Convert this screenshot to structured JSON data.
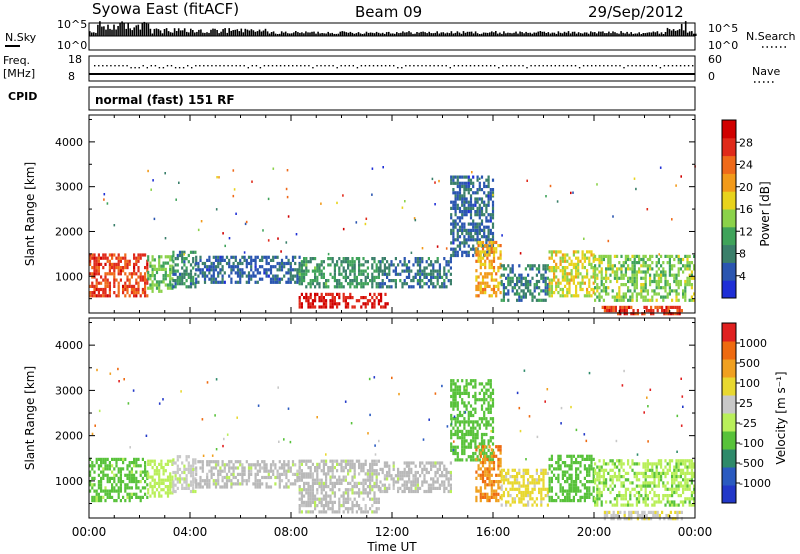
{
  "header": {
    "station": "Syowa East (fitACF)",
    "beam": "Beam 09",
    "date": "29/Sep/2012"
  },
  "strip": {
    "nsky_label": "N.Sky",
    "nsky_ticks": [
      "10^5",
      "10^0"
    ],
    "nsearch_label": "N.Search",
    "nsearch_ticks": [
      "10^5",
      "10^0"
    ],
    "freq_label_1": "Freq.",
    "freq_label_2": "[MHz]",
    "freq_ticks": [
      "18",
      "8"
    ],
    "nave_label": "Nave",
    "nave_ticks": [
      "60",
      "0"
    ],
    "cpid_label": "CPID",
    "cpid_text": "normal (fast) 151 RF"
  },
  "colors": {
    "power_scale": [
      "#1f2fd6",
      "#2a55b0",
      "#3a7f6a",
      "#3fa35a",
      "#8bd24a",
      "#e8d31c",
      "#f29a1a",
      "#ef6a1a",
      "#e02a1a",
      "#d00000"
    ],
    "velocity_scale": [
      "#2238c8",
      "#2a5ac0",
      "#2e8a6a",
      "#58c23a",
      "#b9ef5a",
      "#c8c8c8",
      "#e8d830",
      "#f0a020",
      "#ee6a10",
      "#e02020"
    ],
    "ground_scatter": "#b9b9b9"
  },
  "chart_data": [
    {
      "type": "heatmap",
      "panel": "power",
      "ylabel": "Slant Range [km]",
      "yticks": [
        "4000",
        "3000",
        "2000",
        "1000"
      ],
      "ylim": [
        180,
        4600
      ],
      "xlim": [
        0,
        24
      ],
      "colorbar_label": "Power [dB]",
      "colorbar_ticks": [
        "28",
        "24",
        "20",
        "16",
        "12",
        "8",
        "4"
      ],
      "colorbar_range": [
        0,
        32
      ],
      "blobs": [
        {
          "t0": 0.0,
          "t1": 2.3,
          "r0": 600,
          "r1": 1550,
          "v": 26
        },
        {
          "t0": 2.3,
          "t1": 3.3,
          "r0": 700,
          "r1": 1500,
          "v": 13
        },
        {
          "t0": 3.3,
          "t1": 4.2,
          "r0": 800,
          "r1": 1600,
          "v": 9
        },
        {
          "t0": 4.2,
          "t1": 8.3,
          "r0": 900,
          "r1": 1500,
          "v": 6
        },
        {
          "t0": 8.3,
          "t1": 11.5,
          "r0": 800,
          "r1": 1500,
          "v": 10
        },
        {
          "t0": 8.3,
          "t1": 11.8,
          "r0": 350,
          "r1": 650,
          "v": 29
        },
        {
          "t0": 11.5,
          "t1": 14.3,
          "r0": 800,
          "r1": 1500,
          "v": 7
        },
        {
          "t0": 14.3,
          "t1": 16.0,
          "r0": 1500,
          "r1": 3300,
          "v": 6
        },
        {
          "t0": 15.3,
          "t1": 16.3,
          "r0": 600,
          "r1": 1800,
          "v": 20
        },
        {
          "t0": 16.3,
          "t1": 18.2,
          "r0": 500,
          "r1": 1300,
          "v": 8
        },
        {
          "t0": 18.2,
          "t1": 20.0,
          "r0": 600,
          "r1": 1600,
          "v": 17
        },
        {
          "t0": 20.0,
          "t1": 24.0,
          "r0": 500,
          "r1": 1500,
          "v": 14
        },
        {
          "t0": 20.3,
          "t1": 23.5,
          "r0": 200,
          "r1": 400,
          "v": 27
        }
      ]
    },
    {
      "type": "heatmap",
      "panel": "velocity",
      "ylabel": "Slant Range [km]",
      "yticks": [
        "4000",
        "3000",
        "2000",
        "1000"
      ],
      "ylim": [
        180,
        4600
      ],
      "xlim": [
        0,
        24
      ],
      "xticks": [
        "00:00",
        "04:00",
        "08:00",
        "12:00",
        "16:00",
        "20:00",
        "00:00"
      ],
      "xlabel": "Time UT",
      "colorbar_label": "Velocity [m s⁻¹]",
      "colorbar_ticks": [
        "1000",
        "500",
        "100",
        "25",
        "-25",
        "-100",
        "-500",
        "-1000"
      ],
      "colorbar_range": [
        -1200,
        1200
      ],
      "blobs": [
        {
          "t0": 0.0,
          "t1": 2.3,
          "r0": 600,
          "r1": 1550,
          "v": -300
        },
        {
          "t0": 2.3,
          "t1": 3.3,
          "r0": 700,
          "r1": 1500,
          "v": -150
        },
        {
          "t0": 3.3,
          "t1": 4.2,
          "r0": 800,
          "r1": 1600,
          "v": 50
        },
        {
          "t0": 4.2,
          "t1": 8.3,
          "r0": 900,
          "r1": 1500,
          "v": 0
        },
        {
          "t0": 8.3,
          "t1": 11.5,
          "r0": 350,
          "r1": 1500,
          "v": 0
        },
        {
          "t0": 11.5,
          "t1": 14.3,
          "r0": 800,
          "r1": 1500,
          "v": 0
        },
        {
          "t0": 14.3,
          "t1": 16.0,
          "r0": 1500,
          "r1": 3300,
          "v": -400
        },
        {
          "t0": 15.3,
          "t1": 16.3,
          "r0": 600,
          "r1": 1800,
          "v": 700
        },
        {
          "t0": 16.3,
          "t1": 18.2,
          "r0": 500,
          "r1": 1300,
          "v": 300
        },
        {
          "t0": 18.2,
          "t1": 20.0,
          "r0": 600,
          "r1": 1600,
          "v": -400
        },
        {
          "t0": 20.0,
          "t1": 24.0,
          "r0": 500,
          "r1": 1500,
          "v": -200
        },
        {
          "t0": 20.3,
          "t1": 23.5,
          "r0": 200,
          "r1": 400,
          "v": 200
        }
      ]
    }
  ]
}
